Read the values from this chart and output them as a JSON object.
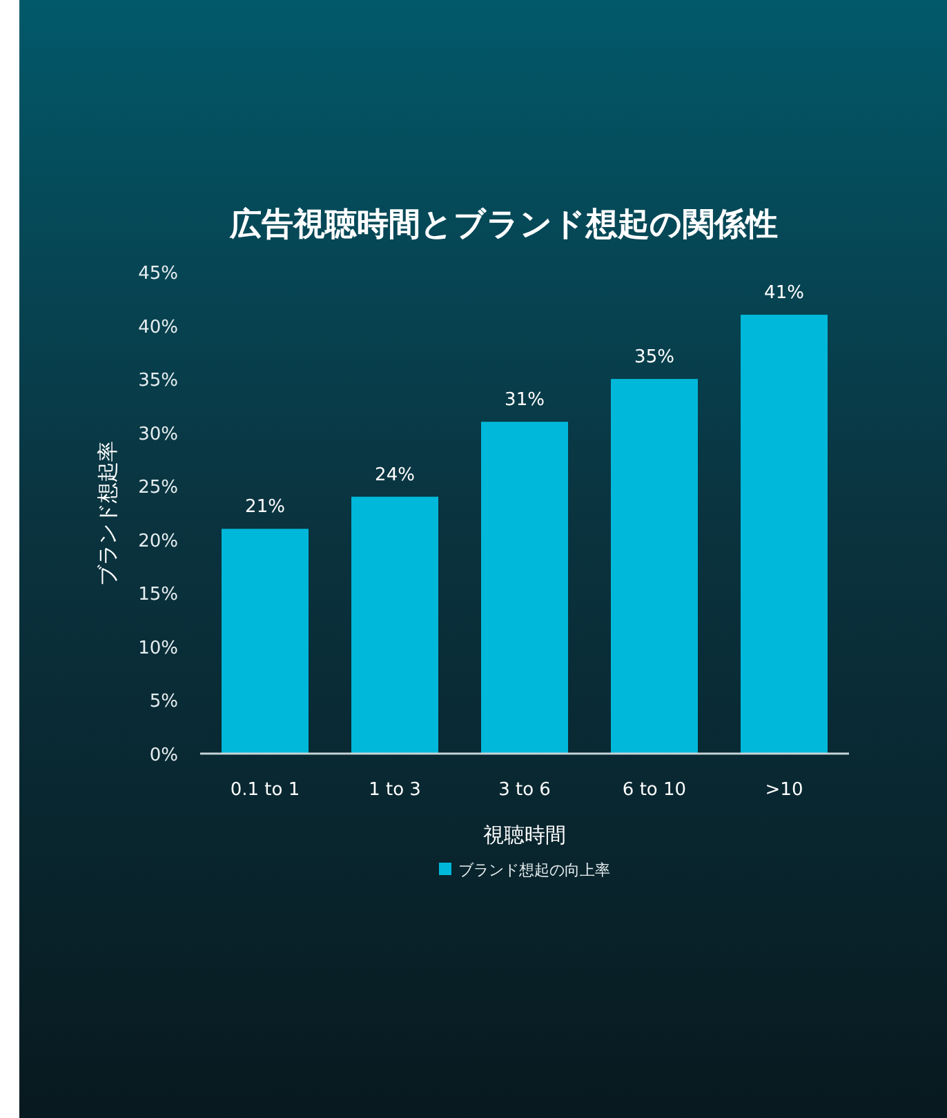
{
  "chart_data": {
    "type": "bar",
    "title": "広告視聴時間とブランド想起の関係性",
    "xlabel": "視聴時間",
    "ylabel": "ブランド想起率",
    "categories": [
      "0.1 to 1",
      "1 to 3",
      "3 to 6",
      "6 to 10",
      ">10"
    ],
    "series": [
      {
        "name": "ブランド想起の向上率",
        "color": "#00b8da",
        "values": [
          21,
          24,
          31,
          35,
          41
        ]
      }
    ],
    "ylim": [
      0,
      45
    ],
    "yticks": [
      {
        "value": 0,
        "label": "0%"
      },
      {
        "value": 5,
        "label": "5%"
      },
      {
        "value": 10,
        "label": "10%"
      },
      {
        "value": 15,
        "label": "15%"
      },
      {
        "value": 20,
        "label": "20%"
      },
      {
        "value": 25,
        "label": "25%"
      },
      {
        "value": 30,
        "label": "30%"
      },
      {
        "value": 35,
        "label": "35%"
      },
      {
        "value": 40,
        "label": "40%"
      },
      {
        "value": 45,
        "label": "45%"
      }
    ],
    "value_labels": [
      "21%",
      "24%",
      "31%",
      "35%",
      "41%"
    ],
    "legend": "bottom",
    "grid": false
  }
}
